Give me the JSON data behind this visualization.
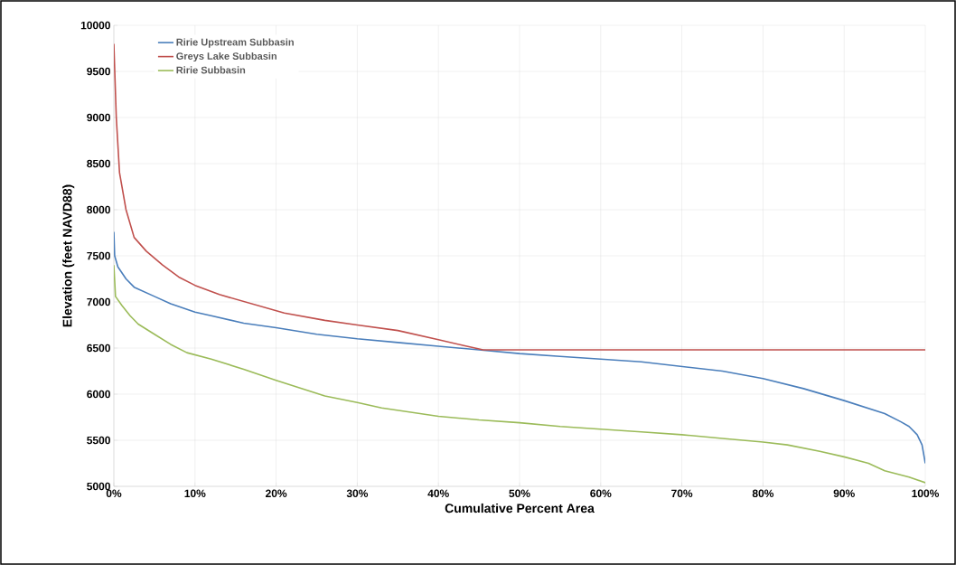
{
  "chart_data": {
    "type": "line",
    "xlabel": "Cumulative Percent Area",
    "ylabel": "Elevation (feet NAVD88)",
    "xlim": [
      0,
      100
    ],
    "ylim": [
      5000,
      10000
    ],
    "xticks": [
      {
        "value": 0,
        "label": "0%"
      },
      {
        "value": 10,
        "label": "10%"
      },
      {
        "value": 20,
        "label": "20%"
      },
      {
        "value": 30,
        "label": "30%"
      },
      {
        "value": 40,
        "label": "40%"
      },
      {
        "value": 50,
        "label": "50%"
      },
      {
        "value": 60,
        "label": "60%"
      },
      {
        "value": 70,
        "label": "70%"
      },
      {
        "value": 80,
        "label": "80%"
      },
      {
        "value": 90,
        "label": "90%"
      },
      {
        "value": 100,
        "label": "100%"
      }
    ],
    "yticks": [
      5000,
      5500,
      6000,
      6500,
      7000,
      7500,
      8000,
      8500,
      9000,
      9500,
      10000
    ],
    "grid": true,
    "legend": "top left",
    "series": [
      {
        "name": "Ririe Upstream Subbasin",
        "color": "#4a7ebb",
        "x": [
          0,
          0.1,
          0.5,
          1.5,
          2.5,
          5,
          7,
          10,
          12,
          16,
          20,
          25,
          30,
          35,
          40,
          45,
          50,
          55,
          60,
          65,
          70,
          75,
          80,
          85,
          90,
          95,
          97,
          98,
          99,
          99.6,
          100
        ],
        "values": [
          7760,
          7500,
          7380,
          7250,
          7160,
          7060,
          6980,
          6890,
          6850,
          6770,
          6720,
          6650,
          6600,
          6560,
          6520,
          6480,
          6440,
          6410,
          6380,
          6350,
          6300,
          6250,
          6170,
          6060,
          5930,
          5790,
          5700,
          5650,
          5560,
          5450,
          5250
        ]
      },
      {
        "name": "Greys Lake Subbasin",
        "color": "#c0504d",
        "x": [
          0,
          0.3,
          0.7,
          1.5,
          2.5,
          4,
          6,
          8,
          10,
          13,
          17,
          21,
          26,
          30,
          35,
          40,
          43,
          45.5,
          100
        ],
        "values": [
          9800,
          9000,
          8400,
          8000,
          7700,
          7550,
          7400,
          7270,
          7180,
          7080,
          6980,
          6880,
          6800,
          6750,
          6690,
          6590,
          6530,
          6480,
          6480
        ]
      },
      {
        "name": "Ririe Subbasin",
        "color": "#9bbb59",
        "x": [
          0,
          0.2,
          1,
          2,
          3,
          5,
          7,
          9,
          12,
          16,
          20,
          26,
          30,
          33,
          40,
          45,
          50,
          55,
          60,
          65,
          70,
          75,
          80,
          83,
          87,
          90,
          93,
          95,
          98,
          100
        ],
        "values": [
          7400,
          7060,
          6960,
          6850,
          6760,
          6650,
          6540,
          6450,
          6380,
          6270,
          6150,
          5980,
          5910,
          5850,
          5760,
          5720,
          5690,
          5650,
          5620,
          5590,
          5560,
          5520,
          5480,
          5450,
          5380,
          5320,
          5250,
          5170,
          5100,
          5040
        ]
      }
    ]
  }
}
